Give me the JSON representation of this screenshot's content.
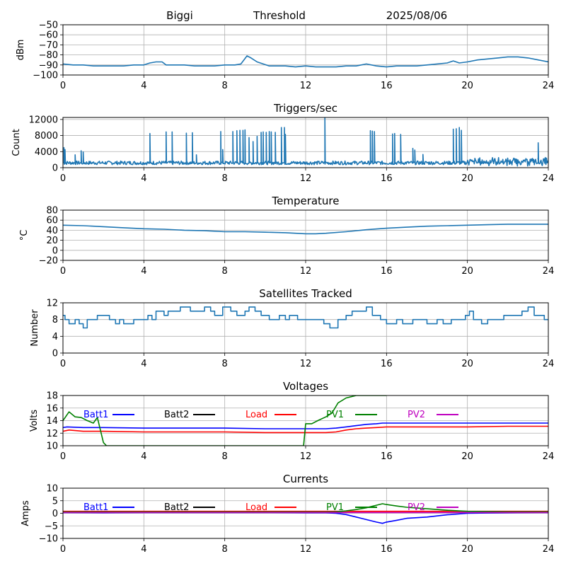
{
  "header": {
    "station": "Biggi",
    "mode": "Threshold",
    "date": "2025/08/06"
  },
  "colors": {
    "series": "#1f77b4",
    "batt1": "#0000ff",
    "batt2": "#000000",
    "load": "#ff0000",
    "pv1": "#008000",
    "pv2": "#bf00bf",
    "grid": "#b0b0b0"
  },
  "chart_data": [
    {
      "id": "rssi",
      "type": "line",
      "title": "",
      "xlabel": "",
      "ylabel": "dBm",
      "xlim": [
        0,
        24
      ],
      "ylim": [
        -100,
        -50
      ],
      "xticks": [
        0,
        4,
        8,
        12,
        16,
        20,
        24
      ],
      "yticks": [
        -100,
        -90,
        -80,
        -70,
        -60,
        -50
      ],
      "grid": true,
      "series": [
        {
          "color_key": "series",
          "x": [
            0,
            0.5,
            1,
            1.5,
            2,
            2.5,
            3,
            3.5,
            4,
            4.3,
            4.6,
            4.9,
            5.1,
            5.5,
            6,
            6.5,
            7,
            7.5,
            8,
            8.5,
            8.8,
            9.1,
            9.3,
            9.6,
            9.9,
            10.2,
            10.5,
            11,
            11.5,
            12,
            12.5,
            13,
            13.5,
            14,
            14.5,
            15,
            15.5,
            16,
            16.5,
            17,
            17.5,
            18,
            18.5,
            19,
            19.3,
            19.6,
            20,
            20.5,
            21,
            21.5,
            22,
            22.5,
            23,
            23.5,
            24
          ],
          "y": [
            -89,
            -90,
            -90,
            -91,
            -91,
            -91,
            -91,
            -90,
            -90,
            -88,
            -87,
            -87,
            -90,
            -90,
            -90,
            -91,
            -91,
            -91,
            -90,
            -90,
            -89,
            -81,
            -83,
            -87,
            -89,
            -91,
            -91,
            -91,
            -92,
            -91,
            -92,
            -92,
            -92,
            -91,
            -91,
            -89,
            -91,
            -92,
            -91,
            -91,
            -91,
            -90,
            -89,
            -88,
            -86,
            -88,
            -87,
            -85,
            -84,
            -83,
            -82,
            -82,
            -83,
            -85,
            -87
          ]
        }
      ]
    },
    {
      "id": "triggers",
      "type": "line",
      "title": "Triggers/sec",
      "xlabel": "",
      "ylabel": "Count",
      "xlim": [
        0,
        24
      ],
      "ylim": [
        0,
        12500
      ],
      "xticks": [
        0,
        4,
        8,
        12,
        16,
        20,
        24
      ],
      "yticks": [
        0,
        4000,
        8000,
        12000
      ],
      "grid": true,
      "series": [
        {
          "color_key": "series",
          "baseline": 1200,
          "spikes": [
            [
              0.05,
              5000
            ],
            [
              0.1,
              4500
            ],
            [
              0.6,
              3200
            ],
            [
              0.9,
              4200
            ],
            [
              1.0,
              3900
            ],
            [
              4.3,
              8500
            ],
            [
              5.1,
              8900
            ],
            [
              5.4,
              8900
            ],
            [
              6.1,
              8600
            ],
            [
              6.4,
              8700
            ],
            [
              6.6,
              3200
            ],
            [
              7.8,
              9000
            ],
            [
              7.9,
              4500
            ],
            [
              8.4,
              9000
            ],
            [
              8.6,
              9200
            ],
            [
              8.75,
              9300
            ],
            [
              8.9,
              9300
            ],
            [
              9.0,
              9400
            ],
            [
              9.2,
              7500
            ],
            [
              9.4,
              6500
            ],
            [
              9.6,
              7800
            ],
            [
              9.8,
              8800
            ],
            [
              9.9,
              8900
            ],
            [
              10.05,
              8800
            ],
            [
              10.2,
              9000
            ],
            [
              10.3,
              8900
            ],
            [
              10.5,
              8800
            ],
            [
              10.8,
              10000
            ],
            [
              10.95,
              10000
            ],
            [
              11.0,
              8300
            ],
            [
              12.95,
              12500
            ],
            [
              15.2,
              9200
            ],
            [
              15.3,
              9100
            ],
            [
              15.4,
              9000
            ],
            [
              16.3,
              8400
            ],
            [
              16.4,
              8500
            ],
            [
              16.7,
              8300
            ],
            [
              17.3,
              4800
            ],
            [
              17.4,
              4400
            ],
            [
              17.8,
              3300
            ],
            [
              19.3,
              9600
            ],
            [
              19.45,
              9700
            ],
            [
              19.6,
              10000
            ],
            [
              19.7,
              9300
            ],
            [
              23.5,
              6200
            ]
          ]
        }
      ]
    },
    {
      "id": "temperature",
      "type": "line",
      "title": "Temperature",
      "xlabel": "",
      "ylabel": "°C",
      "xlim": [
        0,
        24
      ],
      "ylim": [
        -20,
        80
      ],
      "xticks": [
        0,
        4,
        8,
        12,
        16,
        20,
        24
      ],
      "yticks": [
        -20,
        0,
        20,
        40,
        60,
        80
      ],
      "grid": true,
      "series": [
        {
          "color_key": "series",
          "x": [
            0,
            1,
            2,
            3,
            4,
            5,
            6,
            7,
            8,
            9,
            10,
            11,
            12,
            12.5,
            13,
            14,
            15,
            16,
            17,
            18,
            19,
            20,
            21,
            22,
            23,
            24
          ],
          "y": [
            50,
            49,
            47,
            45,
            43,
            42,
            40,
            39,
            37,
            37,
            36,
            35,
            33,
            33,
            34,
            37,
            41,
            44,
            46,
            48,
            49,
            50,
            51,
            52,
            52,
            52
          ]
        }
      ]
    },
    {
      "id": "satellites",
      "type": "line",
      "title": "Satellites Tracked",
      "xlabel": "",
      "ylabel": "Number",
      "xlim": [
        0,
        24
      ],
      "ylim": [
        0,
        12
      ],
      "xticks": [
        0,
        4,
        8,
        12,
        16,
        20,
        24
      ],
      "yticks": [
        0,
        4,
        8,
        12
      ],
      "grid": true,
      "series": [
        {
          "color_key": "series",
          "step": true,
          "x": [
            0,
            0.1,
            0.3,
            0.6,
            0.8,
            1.0,
            1.2,
            1.7,
            2.3,
            2.6,
            2.8,
            3.0,
            3.5,
            4.2,
            4.4,
            4.6,
            5.0,
            5.2,
            5.5,
            5.8,
            6.3,
            6.6,
            7.0,
            7.3,
            7.5,
            7.9,
            8.3,
            8.6,
            9.0,
            9.2,
            9.5,
            9.8,
            10.2,
            10.7,
            11.0,
            11.2,
            11.6,
            12.5,
            12.9,
            13.2,
            13.6,
            14.0,
            14.3,
            14.7,
            15.0,
            15.3,
            15.7,
            16.0,
            16.5,
            16.8,
            17.3,
            17.6,
            18.0,
            18.5,
            18.8,
            19.2,
            19.5,
            19.9,
            20.1,
            20.3,
            20.7,
            21.0,
            21.4,
            21.8,
            22.3,
            22.7,
            23.0,
            23.3,
            23.8,
            24
          ],
          "y": [
            9,
            8,
            7,
            8,
            7,
            6,
            8,
            9,
            8,
            7,
            8,
            7,
            8,
            9,
            8,
            10,
            9,
            10,
            10,
            11,
            10,
            10,
            11,
            10,
            9,
            11,
            10,
            9,
            10,
            11,
            10,
            9,
            8,
            9,
            8,
            9,
            8,
            8,
            7,
            6,
            8,
            9,
            10,
            10,
            11,
            9,
            8,
            7,
            8,
            7,
            8,
            8,
            7,
            8,
            7,
            8,
            8,
            9,
            10,
            8,
            7,
            8,
            8,
            9,
            9,
            10,
            11,
            9,
            8,
            8
          ]
        }
      ]
    },
    {
      "id": "voltages",
      "type": "line",
      "title": "Voltages",
      "xlabel": "",
      "ylabel": "Volts",
      "xlim": [
        0,
        24
      ],
      "ylim": [
        10,
        18
      ],
      "xticks": [
        0,
        4,
        8,
        12,
        16,
        20,
        24
      ],
      "yticks": [
        10,
        12,
        14,
        16,
        18
      ],
      "grid": true,
      "legend_position": "top",
      "series": [
        {
          "name": "Batt1",
          "color_key": "batt1",
          "x": [
            0,
            0.2,
            1,
            2,
            4,
            6,
            8,
            10,
            12,
            13,
            13.5,
            14,
            14.5,
            15,
            15.5,
            15.8,
            16,
            18,
            20,
            22,
            24
          ],
          "y": [
            12.9,
            13.0,
            12.9,
            12.9,
            12.8,
            12.8,
            12.8,
            12.7,
            12.7,
            12.7,
            12.8,
            13.0,
            13.2,
            13.4,
            13.5,
            13.6,
            13.6,
            13.6,
            13.6,
            13.6,
            13.6
          ]
        },
        {
          "name": "Batt2",
          "color_key": "batt2",
          "x": [],
          "y": []
        },
        {
          "name": "Load",
          "color_key": "load",
          "x": [
            0,
            0.3,
            1,
            2,
            4,
            6,
            8,
            10,
            11,
            12,
            13,
            13.5,
            14,
            14.5,
            15,
            15.5,
            16,
            18,
            20,
            22,
            24
          ],
          "y": [
            12.3,
            12.5,
            12.3,
            12.3,
            12.2,
            12.2,
            12.2,
            12.1,
            12.1,
            12.1,
            12.1,
            12.2,
            12.5,
            12.7,
            12.8,
            12.9,
            13.0,
            13.0,
            13.0,
            13.1,
            13.1
          ]
        },
        {
          "name": "PV1",
          "color_key": "pv1",
          "x": [
            0,
            0.3,
            0.6,
            0.9,
            1.2,
            1.5,
            1.7,
            1.85,
            2.0,
            2.15,
            11.9,
            12.0,
            12.3,
            12.6,
            13.0,
            13.3,
            13.6,
            14.0,
            14.5,
            15.0,
            15.5,
            15.8,
            16.0
          ],
          "y": [
            14.0,
            15.4,
            14.6,
            14.5,
            14.0,
            13.6,
            14.5,
            12.5,
            10.5,
            10.0,
            10.0,
            13.5,
            13.5,
            14.0,
            14.6,
            15.2,
            16.8,
            17.6,
            18.0,
            18.0,
            18.0,
            18.0,
            18.0
          ]
        },
        {
          "name": "PV2",
          "color_key": "pv2",
          "x": [],
          "y": []
        }
      ]
    },
    {
      "id": "currents",
      "type": "line",
      "title": "Currents",
      "xlabel": "",
      "ylabel": "Amps",
      "xlim": [
        0,
        24
      ],
      "ylim": [
        -10,
        10
      ],
      "xticks": [
        0,
        4,
        8,
        12,
        16,
        20,
        24
      ],
      "yticks": [
        -10,
        -5,
        0,
        5,
        10
      ],
      "grid": true,
      "legend_position": "top",
      "series": [
        {
          "name": "Batt1",
          "color_key": "batt1",
          "x": [
            0,
            2,
            4,
            6,
            8,
            10,
            12,
            13,
            13.5,
            14,
            14.5,
            15,
            15.5,
            15.8,
            16,
            16.5,
            17,
            18,
            19,
            20,
            21,
            22,
            24
          ],
          "y": [
            0.3,
            0.2,
            0.3,
            0.3,
            0.3,
            0.3,
            0.2,
            0.2,
            0.0,
            -0.5,
            -1.5,
            -2.5,
            -3.5,
            -4.0,
            -3.5,
            -2.8,
            -2.0,
            -1.5,
            -0.6,
            0.0,
            0.1,
            0.2,
            0.3
          ]
        },
        {
          "name": "Batt2",
          "color_key": "batt2",
          "x": [],
          "y": []
        },
        {
          "name": "Load",
          "color_key": "load",
          "x": [
            0,
            4,
            8,
            12,
            16,
            20,
            24
          ],
          "y": [
            0.8,
            0.8,
            0.8,
            0.8,
            0.8,
            0.8,
            0.8
          ]
        },
        {
          "name": "PV1",
          "color_key": "pv1",
          "x": [
            0,
            4,
            8,
            12,
            13,
            13.5,
            14,
            14.5,
            15,
            15.5,
            15.8,
            16,
            16.5,
            17,
            18,
            19,
            20,
            22,
            24
          ],
          "y": [
            0.5,
            0.5,
            0.5,
            0.5,
            0.5,
            0.6,
            1.0,
            1.5,
            2.2,
            3.2,
            3.8,
            3.5,
            2.9,
            2.4,
            1.8,
            1.2,
            0.8,
            0.6,
            0.6
          ]
        },
        {
          "name": "PV2",
          "color_key": "pv2",
          "x": [
            0,
            4,
            8,
            12,
            16,
            20,
            24
          ],
          "y": [
            0.3,
            0.3,
            0.3,
            0.3,
            0.3,
            0.3,
            0.3
          ]
        }
      ]
    }
  ]
}
